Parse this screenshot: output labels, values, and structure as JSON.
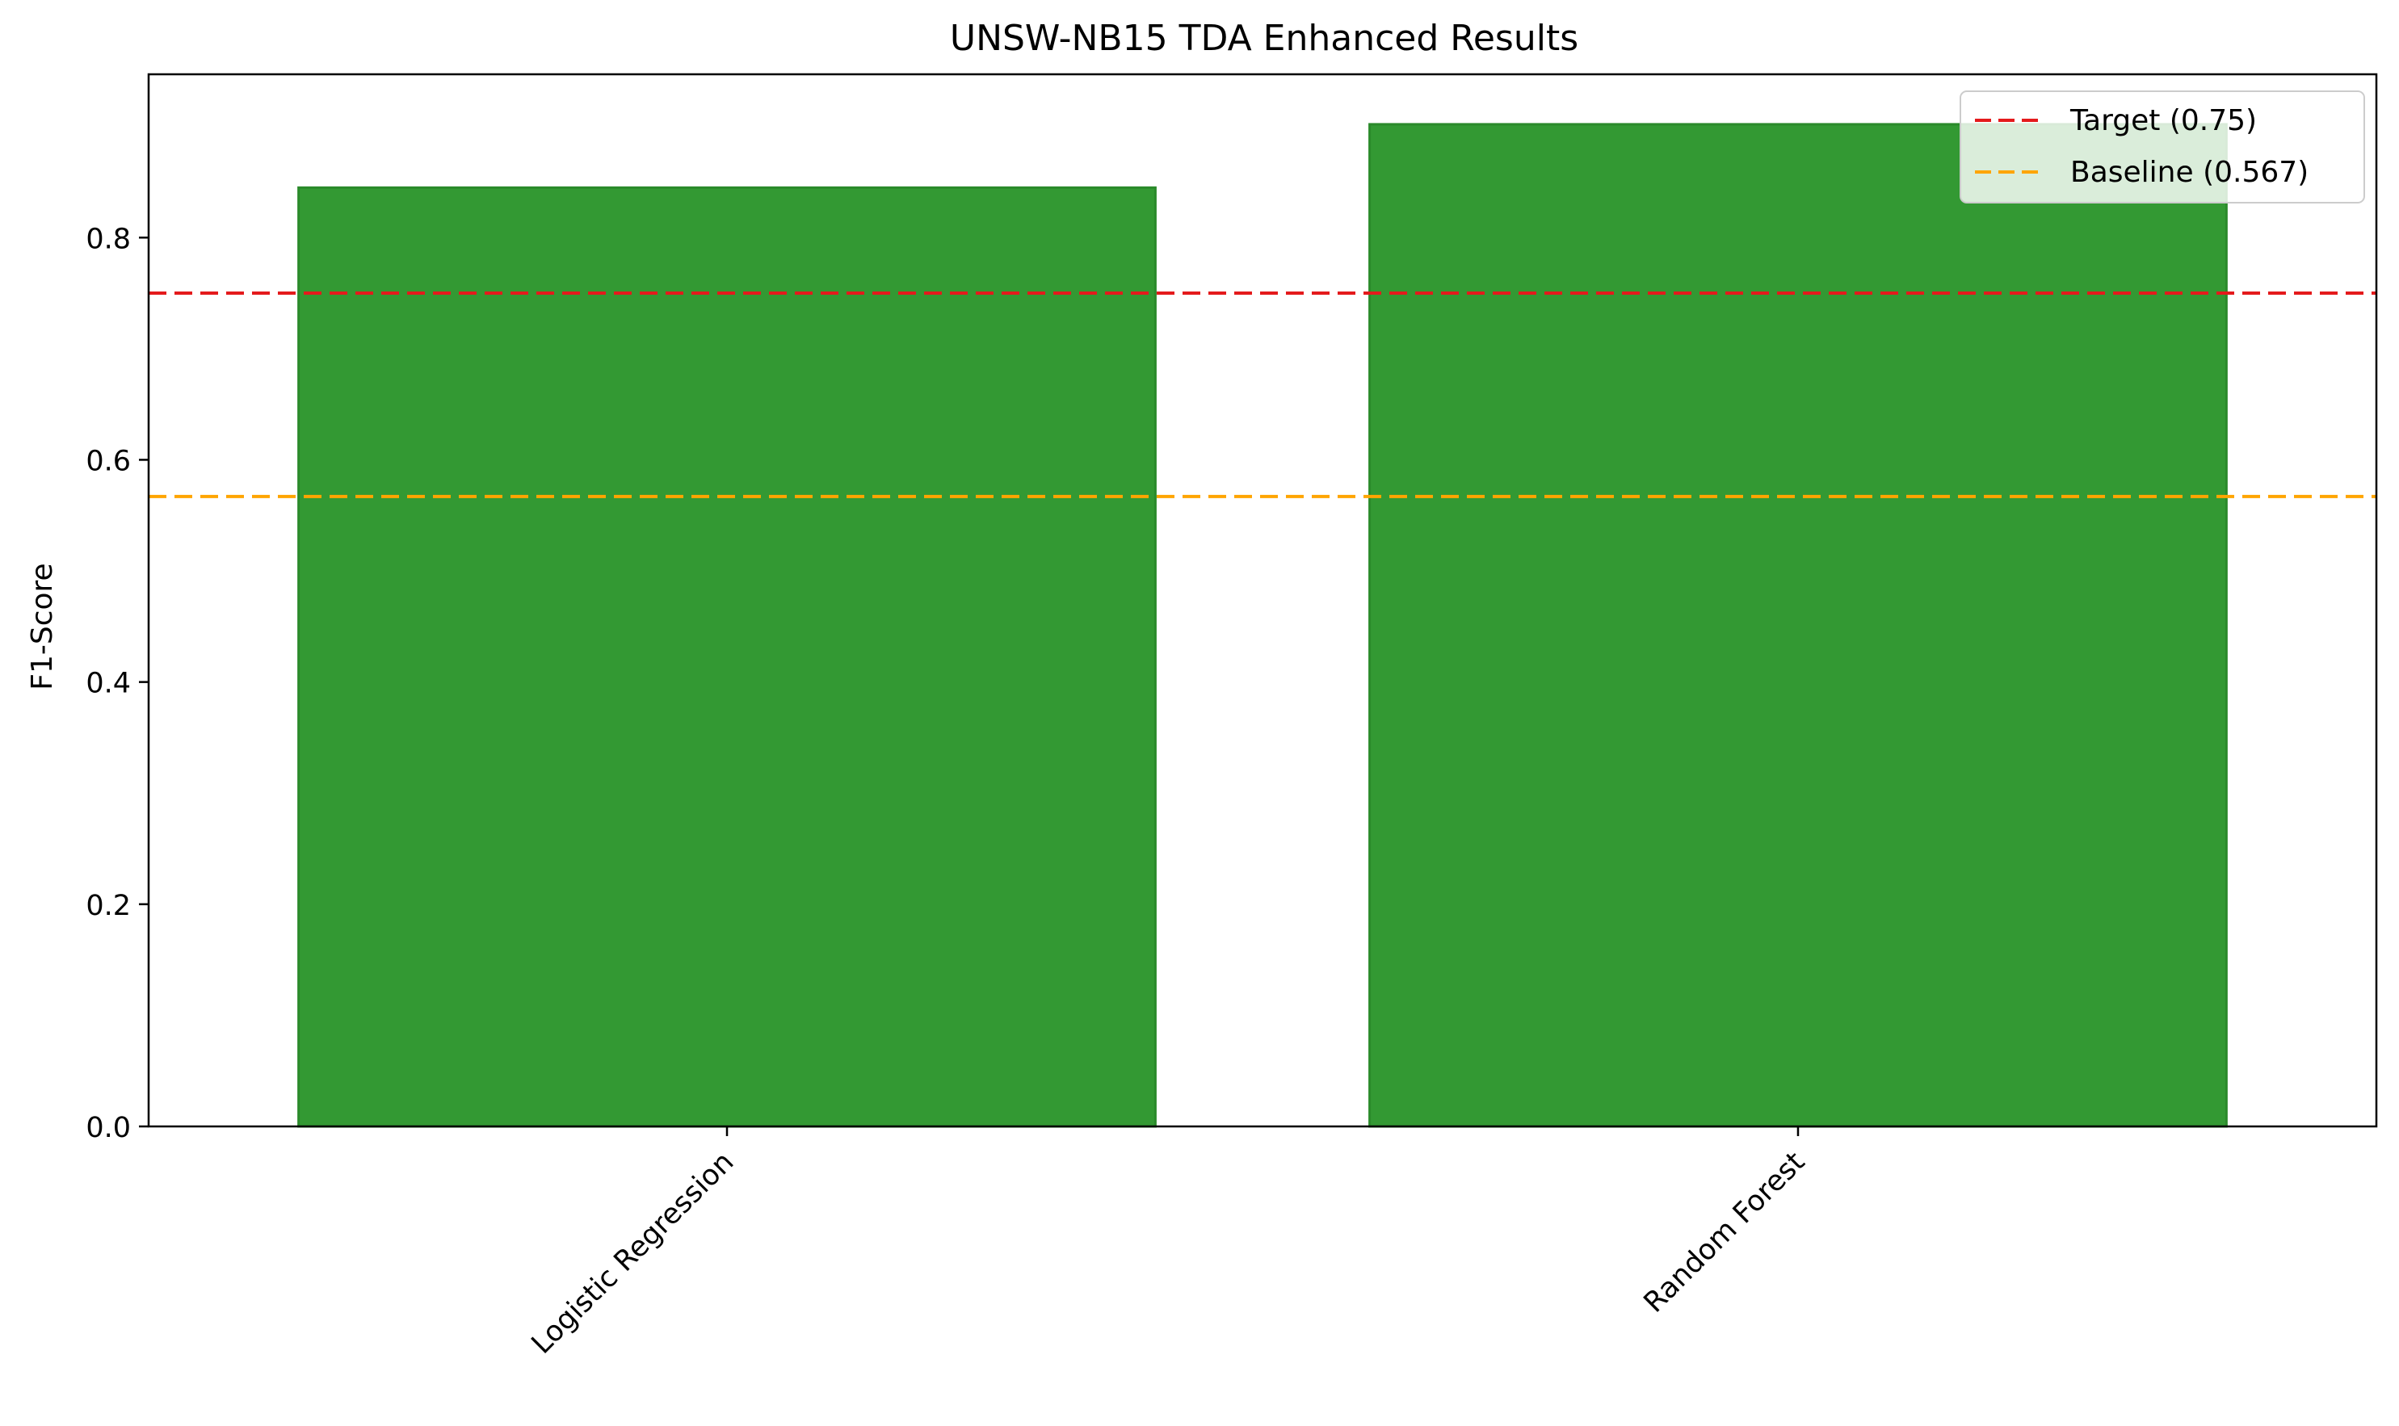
{
  "chart_data": {
    "type": "bar",
    "title": "UNSW-NB15 TDA Enhanced Results",
    "xlabel": "",
    "ylabel": "F1-Score",
    "categories": [
      "Logistic Regression",
      "Random Forest"
    ],
    "values": [
      0.845,
      0.902
    ],
    "ylim": [
      0,
      0.947
    ],
    "yticks": [
      0.0,
      0.2,
      0.4,
      0.6,
      0.8
    ],
    "ytick_labels": [
      "0.0",
      "0.2",
      "0.4",
      "0.6",
      "0.8"
    ],
    "bar_color": "#339933",
    "bar_edge_color": "#2a8a2a",
    "reference_lines": [
      {
        "label": "Target (0.75)",
        "value": 0.75,
        "color": "#e41a1c"
      },
      {
        "label": "Baseline (0.567)",
        "value": 0.567,
        "color": "#ffa500"
      }
    ],
    "legend_position": "top-right",
    "grid": false
  }
}
